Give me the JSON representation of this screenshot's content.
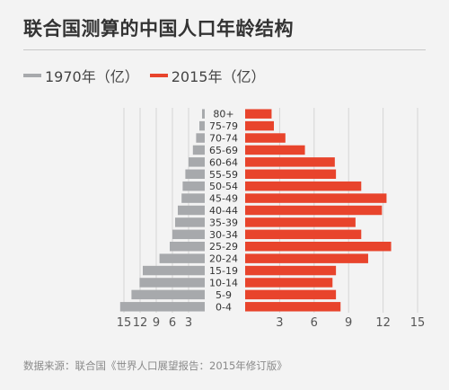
{
  "title": "联合国测算的中国人口年龄结构",
  "source": "数据来源：联合国《世界人口展望报告：2015年修订版》",
  "colors": {
    "series_1970": "#a7a9ac",
    "series_2015": "#e8442c"
  },
  "chart_data": {
    "type": "bar",
    "orientation": "population-pyramid",
    "categories": [
      "80+",
      "75-79",
      "70-74",
      "65-69",
      "60-64",
      "55-59",
      "50-54",
      "45-49",
      "40-44",
      "35-39",
      "30-34",
      "25-29",
      "20-24",
      "15-19",
      "10-14",
      "5-9",
      "0-4"
    ],
    "series": [
      {
        "name": "1970年（亿）",
        "side": "left",
        "values": [
          0.5,
          1.0,
          1.6,
          2.2,
          3.0,
          3.6,
          4.1,
          4.3,
          5.0,
          5.5,
          6.0,
          6.5,
          8.4,
          11.5,
          12.1,
          13.6,
          15.7
        ]
      },
      {
        "name": "2015年（亿）",
        "side": "right",
        "values": [
          2.3,
          2.5,
          3.5,
          5.2,
          7.8,
          7.9,
          10.1,
          12.3,
          11.9,
          9.6,
          10.1,
          12.7,
          10.7,
          7.9,
          7.6,
          7.9,
          8.3
        ]
      }
    ],
    "left_ticks": [
      "3",
      "6",
      "9",
      "12",
      "15"
    ],
    "right_ticks": [
      "3",
      "6",
      "9",
      "12",
      "15"
    ],
    "xlim": [
      0,
      15
    ],
    "grid": true,
    "legend_position": "top-left"
  }
}
